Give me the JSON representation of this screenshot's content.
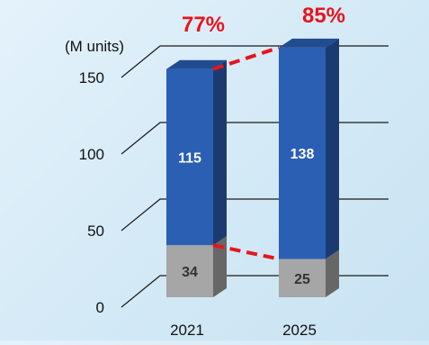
{
  "chart_data": {
    "type": "bar",
    "stacked": true,
    "three_d": true,
    "categories": [
      "2021",
      "2025"
    ],
    "series": [
      {
        "values": [
          34,
          25
        ],
        "color": "#a6a6a6"
      },
      {
        "values": [
          115,
          138
        ],
        "color": "#2b5fb4"
      }
    ],
    "ylabel": "(M units)",
    "ylim": [
      0,
      150
    ],
    "yticks": [
      "0",
      "50",
      "100",
      "150"
    ],
    "annotations": [
      "77%",
      "85%"
    ],
    "annotation_color": "#e8141c",
    "connector_color": "#e8141c",
    "grid": true
  }
}
